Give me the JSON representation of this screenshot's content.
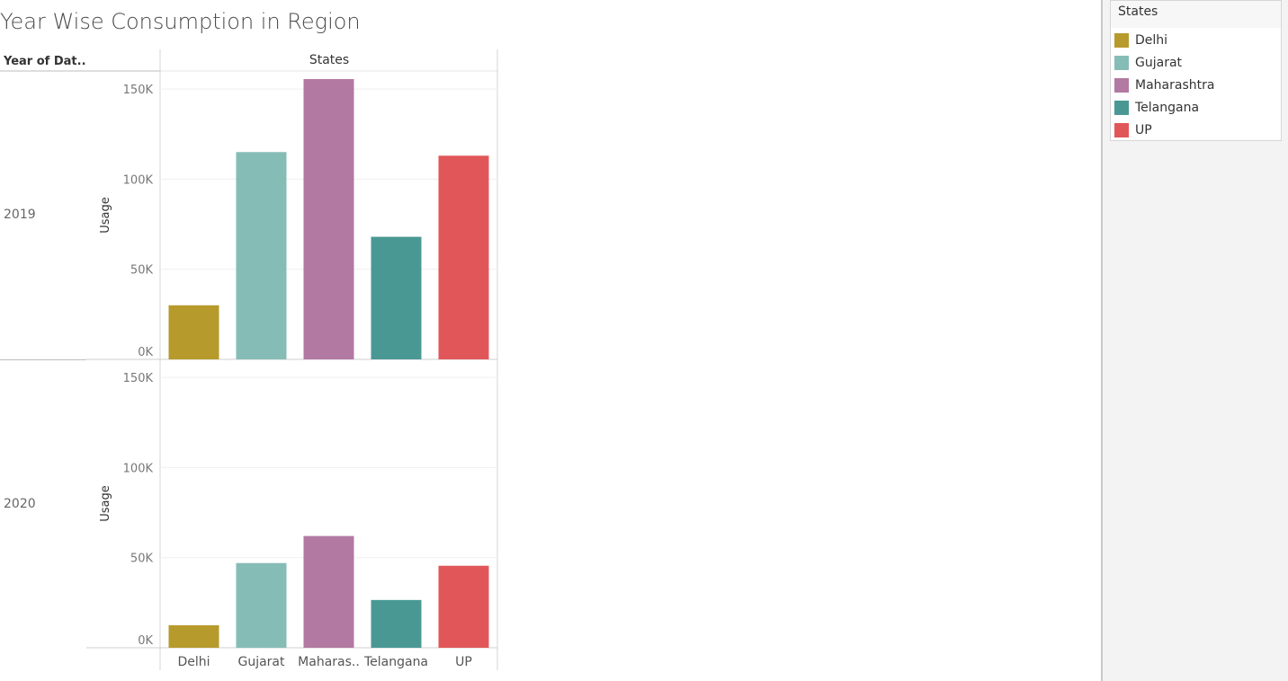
{
  "title": "Year Wise Consumption in Region",
  "column_headers": {
    "year": "Year of Dat..",
    "states": "States"
  },
  "legend": {
    "title": "States",
    "items": [
      {
        "label": "Delhi",
        "color": "#b79a2c"
      },
      {
        "label": "Gujarat",
        "color": "#86bcb6"
      },
      {
        "label": "Maharashtra",
        "color": "#b279a2"
      },
      {
        "label": "Telangana",
        "color": "#499894"
      },
      {
        "label": "UP",
        "color": "#e15759"
      }
    ]
  },
  "chart_data": {
    "type": "bar",
    "categories": [
      "Delhi",
      "Gujarat",
      "Maharashtra",
      "Telangana",
      "UP"
    ],
    "x_tick_labels": [
      "Delhi",
      "Gujarat",
      "Maharas..",
      "Telangana",
      "UP"
    ],
    "ylabel": "Usage",
    "ylim": [
      0,
      160000
    ],
    "y_ticks": [
      0,
      50000,
      100000,
      150000
    ],
    "y_tick_labels": [
      "0K",
      "50K",
      "100K",
      "150K"
    ],
    "grid": true,
    "legend_position": "top-right",
    "colors": [
      "#b79a2c",
      "#86bcb6",
      "#b279a2",
      "#499894",
      "#e15759"
    ],
    "panels": [
      {
        "year": "2019",
        "values": [
          30000,
          115000,
          155500,
          68000,
          113000
        ]
      },
      {
        "year": "2020",
        "values": [
          12500,
          47000,
          62000,
          26500,
          45500
        ]
      }
    ]
  }
}
